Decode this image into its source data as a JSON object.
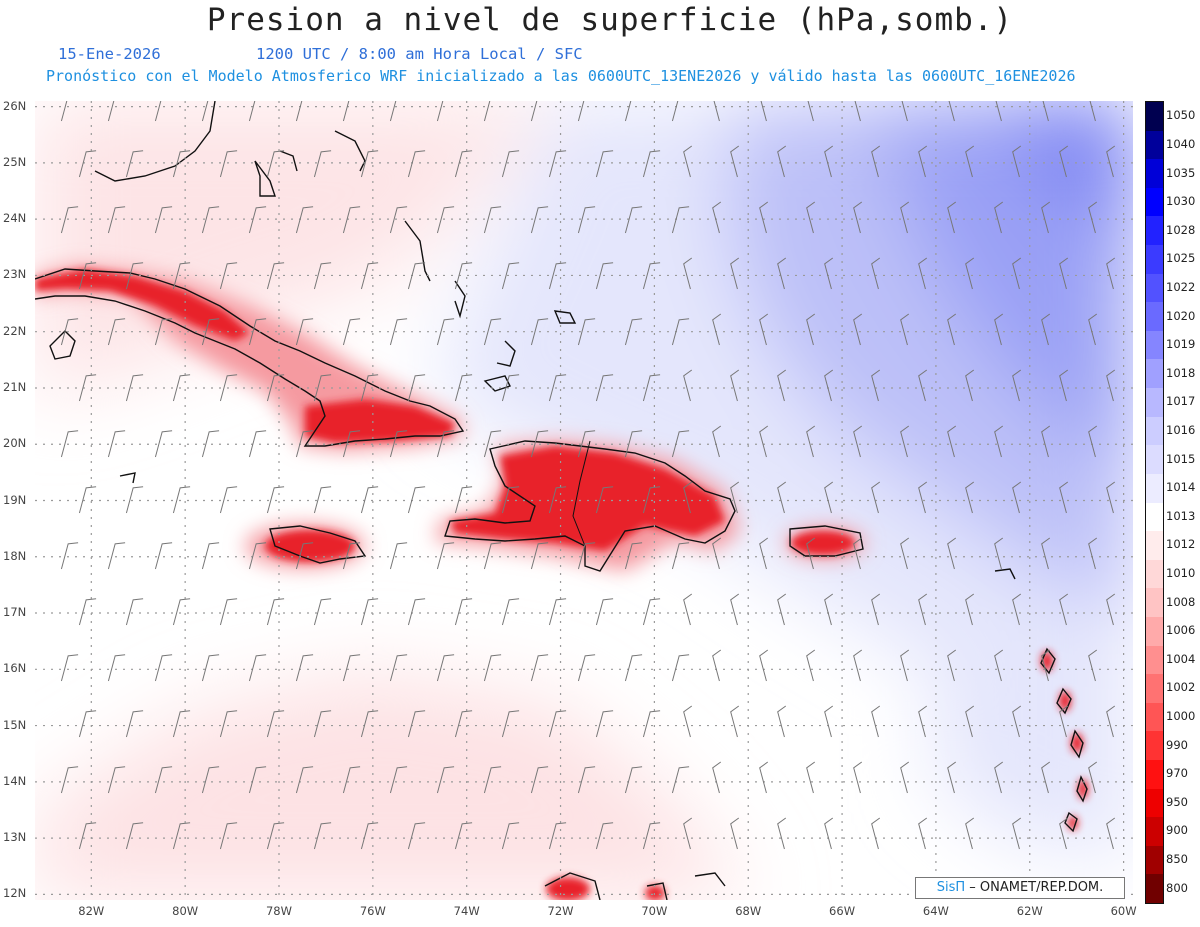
{
  "header": {
    "title": "Presion a nivel de superficie (hPa,somb.)",
    "date": "15-Ene-2026",
    "valid_time": "1200 UTC / 8:00 am Hora Local / SFC",
    "model_info": "Pronóstico con el Modelo Atmosferico WRF inicializado a las 0600UTC_13ENE2026 y válido hasta las  0600UTC_16ENE2026"
  },
  "map": {
    "lon_range": [
      -83.2,
      -59.8
    ],
    "lat_range": [
      11.9,
      26.1
    ],
    "lon_labels": [
      "82W",
      "80W",
      "78W",
      "76W",
      "74W",
      "72W",
      "70W",
      "68W",
      "66W",
      "64W",
      "62W",
      "60W"
    ],
    "lat_labels": [
      "26N",
      "25N",
      "24N",
      "23N",
      "22N",
      "21N",
      "20N",
      "19N",
      "18N",
      "17N",
      "16N",
      "15N",
      "14N",
      "13N",
      "12N"
    ],
    "colors": {
      "land_high": "#e8222a",
      "land_mid": "#f37f86",
      "coast": "#111111",
      "grid": "#999999",
      "barb": "#666666"
    }
  },
  "colorbar": {
    "levels": [
      "1050",
      "1040",
      "1035",
      "1030",
      "1028",
      "1025",
      "1022",
      "1020",
      "1019",
      "1018",
      "1017",
      "1016",
      "1015",
      "1014",
      "1013",
      "1012",
      "1010",
      "1008",
      "1006",
      "1004",
      "1002",
      "1000",
      "990",
      "970",
      "950",
      "900",
      "850",
      "800"
    ],
    "colors": [
      "#000050",
      "#00009b",
      "#0000d8",
      "#0000ff",
      "#2222ff",
      "#3b3bff",
      "#5252ff",
      "#6a6aff",
      "#8585ff",
      "#a0a0ff",
      "#b8b8ff",
      "#cccdff",
      "#dcdcff",
      "#ececff",
      "#ffffff",
      "#ffecec",
      "#ffd8d8",
      "#ffc4c4",
      "#ffaaaa",
      "#ff8f8f",
      "#ff7272",
      "#ff5555",
      "#ff3333",
      "#ff1111",
      "#ee0000",
      "#cc0000",
      "#a00000",
      "#700000"
    ]
  },
  "credit": {
    "logo": "SisΠ",
    "text": "– ONAMET/REP.DOM."
  }
}
